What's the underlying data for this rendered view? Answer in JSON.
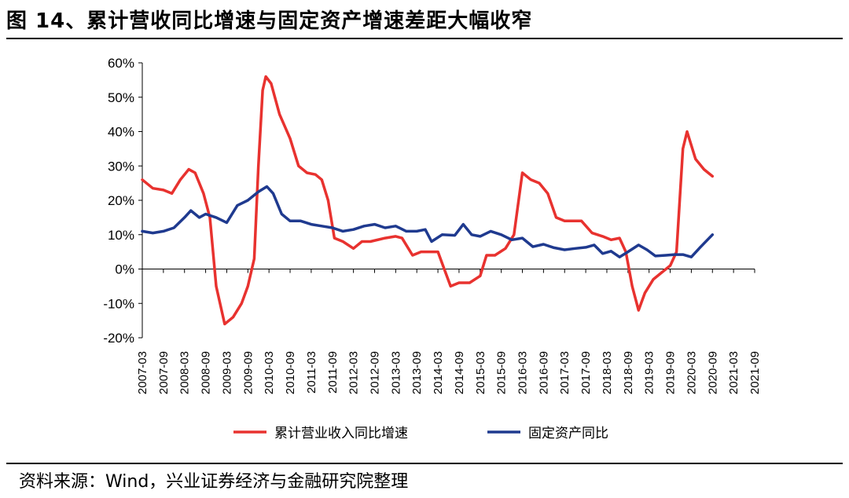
{
  "header": {
    "title": "图 14、累计营收同比增速与固定资产增速差距大幅收窄"
  },
  "footer": {
    "source": "资料来源：Wind，兴业证券经济与金融研究院整理"
  },
  "chart_data": {
    "type": "line",
    "ylim": [
      -20,
      60
    ],
    "yticks": [
      -20,
      -10,
      0,
      10,
      20,
      30,
      40,
      50,
      60
    ],
    "ytick_labels": [
      "-20%",
      "-10%",
      "0%",
      "10%",
      "20%",
      "30%",
      "40%",
      "50%",
      "60%"
    ],
    "xtick_labels": [
      "2007-03",
      "2007-09",
      "2008-03",
      "2008-09",
      "2009-03",
      "2009-09",
      "2010-03",
      "2010-09",
      "2011-03",
      "2011-09",
      "2012-03",
      "2012-09",
      "2013-03",
      "2013-09",
      "2014-03",
      "2014-09",
      "2015-03",
      "2015-09",
      "2016-03",
      "2016-09",
      "2017-03",
      "2017-09",
      "2018-03",
      "2018-09",
      "2019-03",
      "2019-09",
      "2020-03",
      "2020-09",
      "2021-03",
      "2021-09"
    ],
    "legend_position": "bottom",
    "series": [
      {
        "name": "累计营业收入同比增速",
        "color": "#e8322f",
        "points": [
          [
            0,
            26
          ],
          [
            0.5,
            23.5
          ],
          [
            1,
            23
          ],
          [
            1.4,
            22
          ],
          [
            1.8,
            26
          ],
          [
            2.2,
            29
          ],
          [
            2.5,
            28
          ],
          [
            2.9,
            22
          ],
          [
            3.2,
            15
          ],
          [
            3.5,
            -5
          ],
          [
            3.9,
            -16
          ],
          [
            4.3,
            -14
          ],
          [
            4.7,
            -10
          ],
          [
            5.0,
            -5
          ],
          [
            5.3,
            3
          ],
          [
            5.5,
            30
          ],
          [
            5.7,
            52
          ],
          [
            5.85,
            56
          ],
          [
            6.1,
            54
          ],
          [
            6.5,
            45
          ],
          [
            7.0,
            38
          ],
          [
            7.4,
            30
          ],
          [
            7.8,
            28
          ],
          [
            8.2,
            27.5
          ],
          [
            8.5,
            26
          ],
          [
            8.8,
            20
          ],
          [
            9.1,
            9
          ],
          [
            9.5,
            8
          ],
          [
            10.0,
            6
          ],
          [
            10.4,
            8
          ],
          [
            10.8,
            8
          ],
          [
            11.5,
            9
          ],
          [
            12.0,
            9.5
          ],
          [
            12.3,
            9
          ],
          [
            12.8,
            4
          ],
          [
            13.2,
            5
          ],
          [
            13.6,
            5
          ],
          [
            14.0,
            5
          ],
          [
            14.3,
            0
          ],
          [
            14.6,
            -5
          ],
          [
            15.0,
            -4
          ],
          [
            15.5,
            -4
          ],
          [
            16.0,
            -2
          ],
          [
            16.3,
            4
          ],
          [
            16.7,
            4
          ],
          [
            17.2,
            6
          ],
          [
            17.6,
            10
          ],
          [
            18.0,
            28
          ],
          [
            18.4,
            26
          ],
          [
            18.8,
            25
          ],
          [
            19.2,
            22
          ],
          [
            19.6,
            15
          ],
          [
            20.0,
            14
          ],
          [
            20.5,
            14
          ],
          [
            20.8,
            14
          ],
          [
            21.3,
            10.5
          ],
          [
            21.8,
            9.5
          ],
          [
            22.2,
            8.5
          ],
          [
            22.6,
            9
          ],
          [
            22.9,
            5
          ],
          [
            23.2,
            -5
          ],
          [
            23.5,
            -12
          ],
          [
            23.8,
            -7
          ],
          [
            24.2,
            -3
          ],
          [
            24.6,
            -1
          ],
          [
            25.0,
            1
          ],
          [
            25.3,
            5
          ],
          [
            25.6,
            35
          ],
          [
            25.8,
            40
          ],
          [
            26.2,
            32
          ],
          [
            26.6,
            29
          ],
          [
            27.0,
            27
          ]
        ]
      },
      {
        "name": "固定资产同比",
        "color": "#1f3a8f",
        "points": [
          [
            0,
            11
          ],
          [
            0.5,
            10.5
          ],
          [
            1,
            11
          ],
          [
            1.5,
            12
          ],
          [
            2.0,
            15
          ],
          [
            2.3,
            17
          ],
          [
            2.7,
            15
          ],
          [
            3.0,
            16
          ],
          [
            3.5,
            15
          ],
          [
            4.0,
            13.5
          ],
          [
            4.5,
            18.5
          ],
          [
            5.0,
            20
          ],
          [
            5.5,
            22.5
          ],
          [
            5.9,
            24
          ],
          [
            6.2,
            22
          ],
          [
            6.6,
            16
          ],
          [
            7.0,
            14
          ],
          [
            7.5,
            14
          ],
          [
            8.0,
            13
          ],
          [
            8.5,
            12.5
          ],
          [
            9.0,
            12
          ],
          [
            9.5,
            11
          ],
          [
            10.0,
            11.5
          ],
          [
            10.5,
            12.5
          ],
          [
            11.0,
            13
          ],
          [
            11.5,
            12
          ],
          [
            12.0,
            12.5
          ],
          [
            12.5,
            11
          ],
          [
            13.0,
            11
          ],
          [
            13.4,
            11.5
          ],
          [
            13.7,
            8
          ],
          [
            14.2,
            10
          ],
          [
            14.8,
            9.8
          ],
          [
            15.2,
            13
          ],
          [
            15.6,
            10
          ],
          [
            16.0,
            9.5
          ],
          [
            16.5,
            11
          ],
          [
            17.0,
            10
          ],
          [
            17.5,
            8.5
          ],
          [
            18.0,
            9
          ],
          [
            18.5,
            6.5
          ],
          [
            19.0,
            7.2
          ],
          [
            19.5,
            6.2
          ],
          [
            20.0,
            5.6
          ],
          [
            20.5,
            6
          ],
          [
            21.0,
            6.3
          ],
          [
            21.4,
            7
          ],
          [
            21.8,
            4.5
          ],
          [
            22.2,
            5.2
          ],
          [
            22.6,
            3.5
          ],
          [
            23.0,
            5
          ],
          [
            23.5,
            7
          ],
          [
            23.9,
            5.6
          ],
          [
            24.3,
            3.8
          ],
          [
            24.8,
            4
          ],
          [
            25.2,
            4.2
          ],
          [
            25.6,
            4.2
          ],
          [
            26.0,
            3.5
          ],
          [
            26.4,
            6.2
          ],
          [
            27.0,
            10
          ]
        ]
      }
    ]
  }
}
